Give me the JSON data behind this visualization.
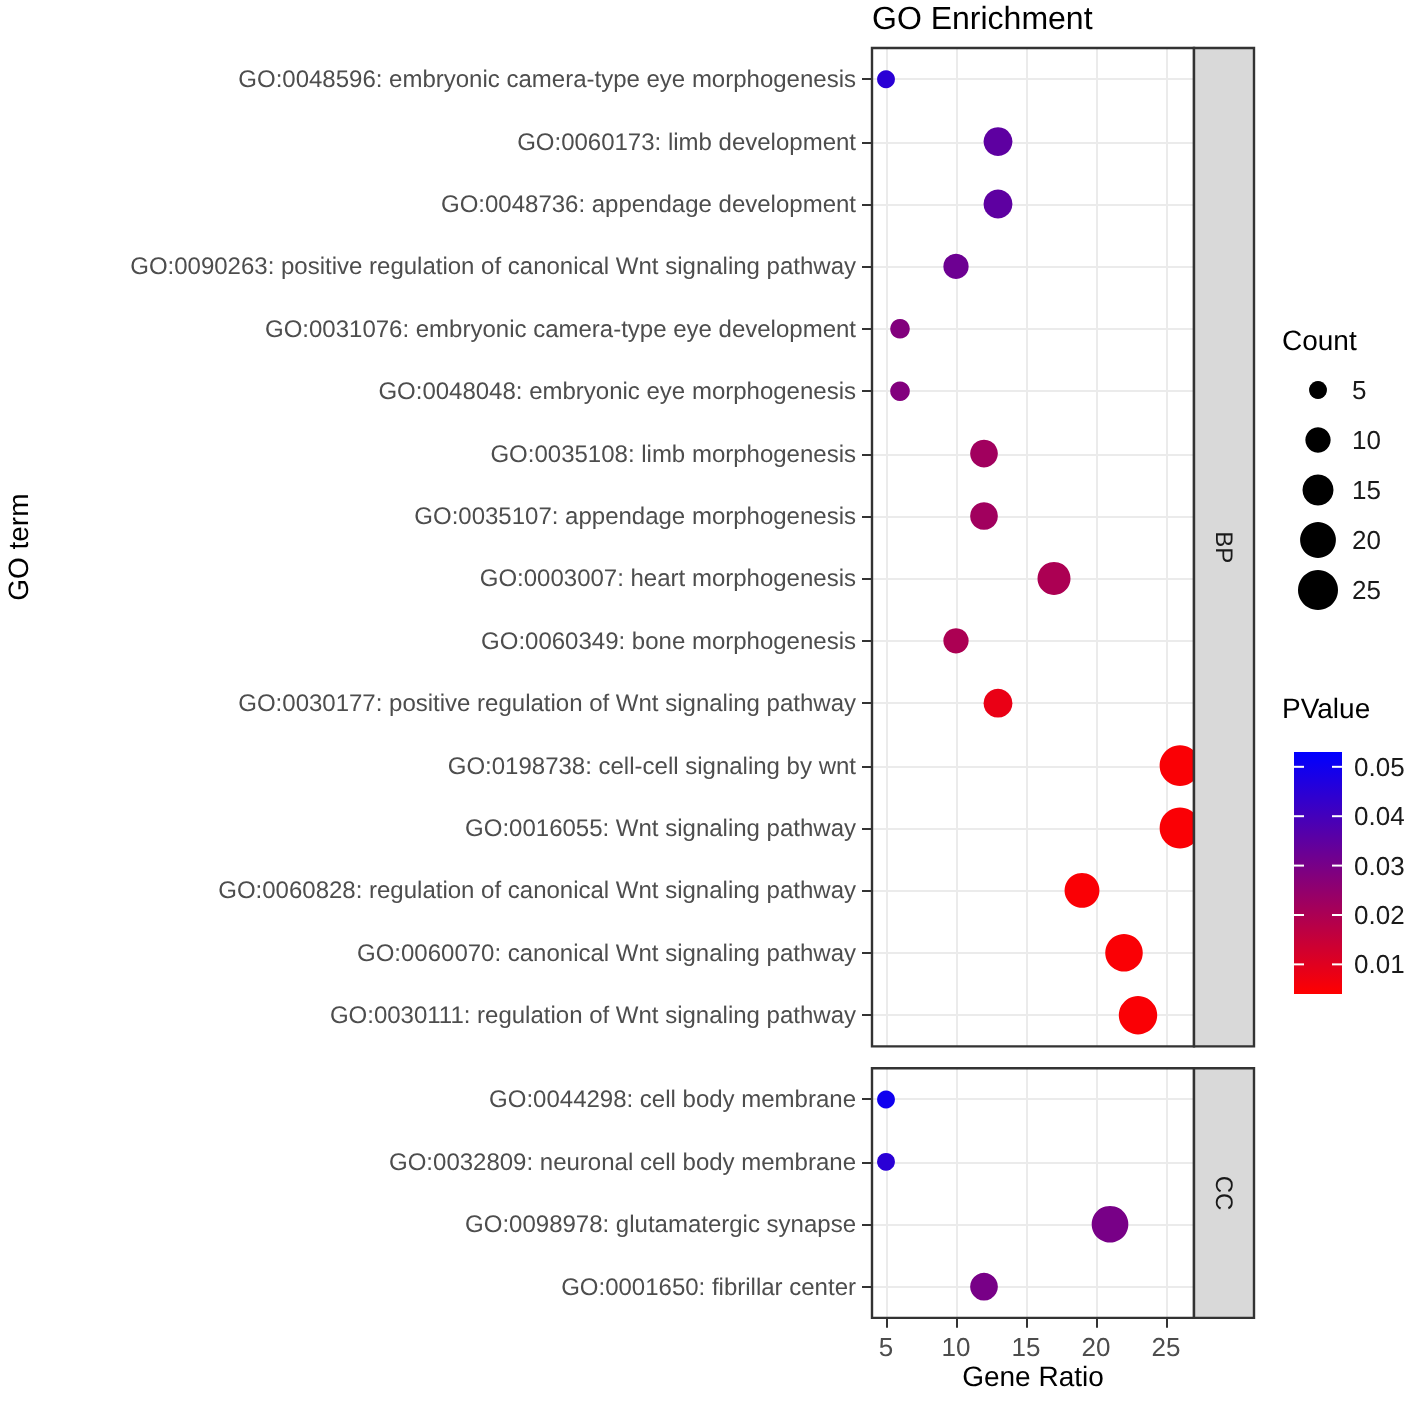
{
  "chart_data": {
    "type": "bubble",
    "orientation": "horizontal",
    "title": "GO Enrichment",
    "xlabel": "Gene Ratio",
    "ylabel": "GO term",
    "grid": true,
    "categories": [
      "GO:0048596: embryonic camera-type eye morphogenesis",
      "GO:0060173: limb development",
      "GO:0048736: appendage development",
      "GO:0090263: positive regulation of canonical Wnt signaling pathway",
      "GO:0031076: embryonic camera-type eye development",
      "GO:0048048: embryonic eye morphogenesis",
      "GO:0035108: limb morphogenesis",
      "GO:0035107: appendage morphogenesis",
      "GO:0003007: heart morphogenesis",
      "GO:0060349: bone morphogenesis",
      "GO:0030177: positive regulation of Wnt signaling pathway",
      "GO:0198738: cell-cell signaling by wnt",
      "GO:0016055: Wnt signaling pathway",
      "GO:0060828: regulation of canonical Wnt signaling pathway",
      "GO:0060070: canonical Wnt signaling pathway",
      "GO:0030111: regulation of Wnt signaling pathway",
      null,
      "GO:0044298: cell body membrane",
      "GO:0032809: neuronal cell body membrane",
      "GO:0098978: glutamatergic synapse",
      "GO:0001650: fibrillar center"
    ],
    "values": [
      5,
      13,
      13,
      10,
      6,
      6,
      12,
      12,
      17,
      10,
      13,
      26,
      26,
      19,
      22,
      23,
      null,
      5,
      5,
      21,
      12
    ],
    "sizes": [
      5,
      13,
      13,
      10,
      6,
      6,
      12,
      12,
      17,
      10,
      13,
      26,
      26,
      19,
      22,
      23,
      null,
      5,
      5,
      21,
      12
    ],
    "cvalues": [
      0.045,
      0.035,
      0.035,
      0.032,
      0.028,
      0.028,
      0.022,
      0.022,
      0.02,
      0.02,
      0.008,
      0.005,
      0.005,
      0.005,
      0.005,
      0.005,
      null,
      0.05,
      0.045,
      0.03,
      0.03
    ],
    "annotations": [
      "BP",
      "CC"
    ],
    "size_legend": [
      5,
      10,
      15,
      20,
      25
    ],
    "legend_title": "Count",
    "clabel": "PValue",
    "clim": [
      0.004,
      0.053
    ],
    "cticks": [
      0.01,
      0.02,
      0.03,
      0.04,
      0.05
    ],
    "xlim": [
      4,
      27
    ],
    "xticks": [
      5,
      10,
      15,
      20,
      25
    ]
  }
}
